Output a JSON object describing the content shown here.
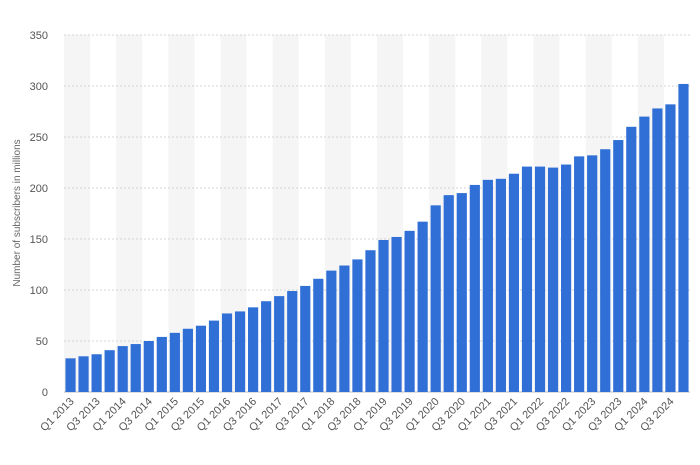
{
  "chart_data": {
    "type": "bar",
    "title": "",
    "xlabel": "",
    "ylabel": "Number of subscribers in millions",
    "ylim": [
      0,
      350
    ],
    "yticks": [
      0,
      50,
      100,
      150,
      200,
      250,
      300,
      350
    ],
    "grid": true,
    "legend": "none",
    "bar_color": "#2f6fd6",
    "categories": [
      "Q1 2013",
      "Q2 2013",
      "Q3 2013",
      "Q4 2013",
      "Q1 2014",
      "Q2 2014",
      "Q3 2014",
      "Q4 2014",
      "Q1 2015",
      "Q2 2015",
      "Q3 2015",
      "Q4 2015",
      "Q1 2016",
      "Q2 2016",
      "Q3 2016",
      "Q4 2016",
      "Q1 2017",
      "Q2 2017",
      "Q3 2017",
      "Q4 2017",
      "Q1 2018",
      "Q2 2018",
      "Q3 2018",
      "Q4 2018",
      "Q1 2019",
      "Q2 2019",
      "Q3 2019",
      "Q4 2019",
      "Q1 2020",
      "Q2 2020",
      "Q3 2020",
      "Q4 2020",
      "Q1 2021",
      "Q2 2021",
      "Q3 2021",
      "Q4 2021",
      "Q1 2022",
      "Q2 2022",
      "Q3 2022",
      "Q4 2022",
      "Q1 2023",
      "Q2 2023",
      "Q3 2023",
      "Q4 2023",
      "Q1 2024",
      "Q2 2024",
      "Q3 2024",
      "Q4 2024"
    ],
    "tick_labels": [
      "Q1 2013",
      "Q3 2013",
      "Q1 2014",
      "Q3 2014",
      "Q1 2015",
      "Q3 2015",
      "Q1 2016",
      "Q3 2016",
      "Q1 2017",
      "Q3 2017",
      "Q1 2018",
      "Q3 2018",
      "Q1 2019",
      "Q3 2019",
      "Q1 2020",
      "Q3 2020",
      "Q1 2021",
      "Q3 2021",
      "Q1 2022",
      "Q3 2022",
      "Q1 2023",
      "Q3 2023",
      "Q1 2024",
      "Q3 2024"
    ],
    "values": [
      33,
      35,
      37,
      41,
      45,
      47,
      50,
      54,
      58,
      62,
      65,
      70,
      77,
      79,
      83,
      89,
      94,
      99,
      104,
      111,
      119,
      124,
      130,
      139,
      149,
      152,
      158,
      167,
      183,
      193,
      195,
      203,
      208,
      209,
      214,
      221,
      221,
      220,
      223,
      231,
      232,
      238,
      247,
      260,
      270,
      278,
      282,
      302
    ]
  }
}
